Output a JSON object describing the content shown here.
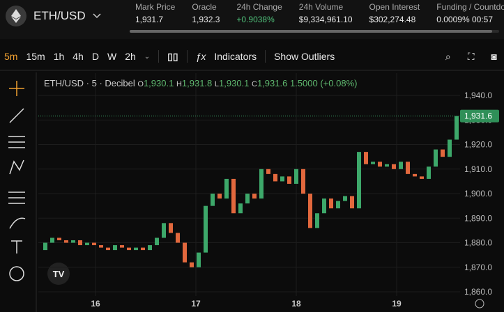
{
  "header": {
    "symbol": "ETH/USD",
    "stats": [
      {
        "label": "Mark Price",
        "value": "1,931.7"
      },
      {
        "label": "Oracle",
        "value": "1,932.3"
      },
      {
        "label": "24h Change",
        "value": "+0.9038%"
      },
      {
        "label": "24h Volume",
        "value": "$9,334,961.10"
      },
      {
        "label": "Open Interest",
        "value": "$302,274.48"
      },
      {
        "label": "Funding / Countdown",
        "value": "0.0009%  00:57"
      }
    ]
  },
  "toolbar": {
    "intervals": [
      "5m",
      "15m",
      "1h",
      "4h",
      "D",
      "W",
      "2h"
    ],
    "indicators": "Indicators",
    "show_outliers": "Show Outliers"
  },
  "chart_data": {
    "type": "candlestick",
    "title": "ETH/USD · 5 · Decibel",
    "ohlc": [
      {
        "label": "O",
        "value": "1,930.1"
      },
      {
        "label": "H",
        "value": "1,931.8"
      },
      {
        "label": "L",
        "value": "1,930.1"
      },
      {
        "label": "C",
        "value": "1,931.6"
      }
    ],
    "change": "1.5000 (+0.08%)",
    "x_labels": [
      "16",
      "17",
      "18",
      "19"
    ],
    "closes": [
      1877,
      1880,
      1882,
      1881,
      1880,
      1881,
      1879,
      1880,
      1879,
      1878,
      1877,
      1879,
      1878,
      1877,
      1878,
      1877,
      1879,
      1882,
      1888,
      1884,
      1880,
      1872,
      1870,
      1876,
      1895,
      1900,
      1898,
      1906,
      1892,
      1896,
      1900,
      1898,
      1910,
      1908,
      1905,
      1907,
      1904,
      1910,
      1900,
      1886,
      1892,
      1898,
      1894,
      1897,
      1899,
      1894,
      1917,
      1912,
      1913,
      1911,
      1912,
      1910,
      1913,
      1908,
      1907,
      1906,
      1911,
      1918,
      1915,
      1922,
      1931.6
    ],
    "ylim": [
      1858.3,
      1949.1
    ],
    "yticks": [
      {
        "value": 1940,
        "label": "1,940.0"
      },
      {
        "value": 1930,
        "label": "1,930.0"
      },
      {
        "value": 1920,
        "label": "1,920.0"
      },
      {
        "value": 1910,
        "label": "1,910.0"
      },
      {
        "value": 1900,
        "label": "1,900.0"
      },
      {
        "value": 1890,
        "label": "1,890.0"
      },
      {
        "value": 1880,
        "label": "1,880.0"
      },
      {
        "value": 1870,
        "label": "1,870.0"
      },
      {
        "value": 1860,
        "label": "1,860.0"
      }
    ],
    "current_price": 1931.6,
    "current_price_label": "1,931.6",
    "up_color": "#3da86a",
    "down_color": "#e2683d"
  }
}
